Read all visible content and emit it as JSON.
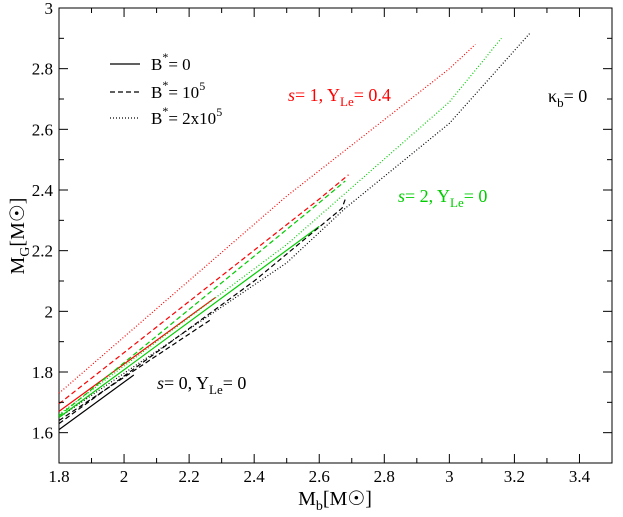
{
  "chart_data": {
    "type": "line",
    "xlabel": {
      "main": "M",
      "sub": "b",
      "unit": "[M",
      "unit_end": "]"
    },
    "ylabel": {
      "main": "M",
      "sub": "G",
      "unit": "[M",
      "unit_end": "]"
    },
    "xlim": [
      1.8,
      3.5
    ],
    "ylim": [
      1.5,
      3.0
    ],
    "xticks": [
      1.8,
      2,
      2.2,
      2.4,
      2.6,
      2.8,
      3,
      3.2,
      3.4
    ],
    "xtick_labels": [
      "1.8",
      "2",
      "2.2",
      "2.4",
      "2.6",
      "2.8",
      "3",
      "3.2",
      "3.4"
    ],
    "yticks": [
      1.6,
      1.8,
      2,
      2.2,
      2.4,
      2.6,
      2.8,
      3
    ],
    "ytick_labels": [
      "1.6",
      "1.8",
      "2",
      "2.2",
      "2.4",
      "2.6",
      "2.8",
      "3"
    ],
    "legend": {
      "position": "top-left",
      "entries": [
        {
          "dash": "solid",
          "base": "B",
          "sup": "*",
          "rest": "= 0",
          "rest_sup": ""
        },
        {
          "dash": "dashed",
          "base": "B",
          "sup": "*",
          "rest": "= 10",
          "rest_sup": "5"
        },
        {
          "dash": "dotted",
          "base": "B",
          "sup": "*",
          "rest": "= 2x10",
          "rest_sup": "5"
        }
      ]
    },
    "annotations": [
      {
        "id": "kappa",
        "color": "#000000",
        "pre": "",
        "greek": "κ",
        "gsub": "b",
        "post": "= 0"
      },
      {
        "id": "s1",
        "color": "#ff0000",
        "pre": "s",
        "text": "= 1, Y",
        "sub": "Le",
        "post": "= 0.4"
      },
      {
        "id": "s2",
        "color": "#00cc00",
        "pre": "s",
        "text": "= 2, Y",
        "sub": "Le",
        "post": "= 0"
      },
      {
        "id": "s0",
        "color": "#000000",
        "pre": "s",
        "text": "= 0, Y",
        "sub": "Le",
        "post": "= 0"
      }
    ],
    "series": [
      {
        "color": "#000000",
        "dash": "solid",
        "x": [
          1.8,
          2.03
        ],
        "y": [
          1.61,
          1.79
        ]
      },
      {
        "color": "#000000",
        "dash": "dashed",
        "x": [
          1.8,
          2.27
        ],
        "y": [
          1.64,
          1.975
        ]
      },
      {
        "color": "#000000",
        "dash": "dotted",
        "x": [
          1.8,
          2.5,
          2.68,
          3.0,
          3.25
        ],
        "y": [
          1.65,
          2.16,
          2.34,
          2.62,
          2.92
        ]
      },
      {
        "color": "#ff0000",
        "dash": "solid",
        "x": [
          1.8,
          2.28
        ],
        "y": [
          1.67,
          2.045
        ]
      },
      {
        "color": "#ff0000",
        "dash": "dashed",
        "x": [
          1.8,
          2.6,
          2.69
        ],
        "y": [
          1.695,
          2.37,
          2.45
        ]
      },
      {
        "color": "#ff0000",
        "dash": "dotted",
        "x": [
          1.8,
          2.5,
          3.0,
          3.08
        ],
        "y": [
          1.73,
          2.38,
          2.8,
          2.88
        ]
      },
      {
        "color": "#00cc00",
        "dash": "solid",
        "x": [
          1.8,
          2.6
        ],
        "y": [
          1.65,
          2.28
        ]
      },
      {
        "color": "#00cc00",
        "dash": "dashed",
        "x": [
          1.8,
          2.58,
          2.68
        ],
        "y": [
          1.655,
          2.34,
          2.43
        ]
      },
      {
        "color": "#00cc00",
        "dash": "dotted",
        "x": [
          1.8,
          2.5,
          3.0,
          3.16
        ],
        "y": [
          1.66,
          2.22,
          2.69,
          2.9
        ]
      },
      {
        "color": "#000000",
        "dash": "dashed",
        "x": [
          1.8,
          2.4,
          2.67,
          2.68
        ],
        "y": [
          1.63,
          2.1,
          2.34,
          2.37
        ]
      }
    ]
  }
}
